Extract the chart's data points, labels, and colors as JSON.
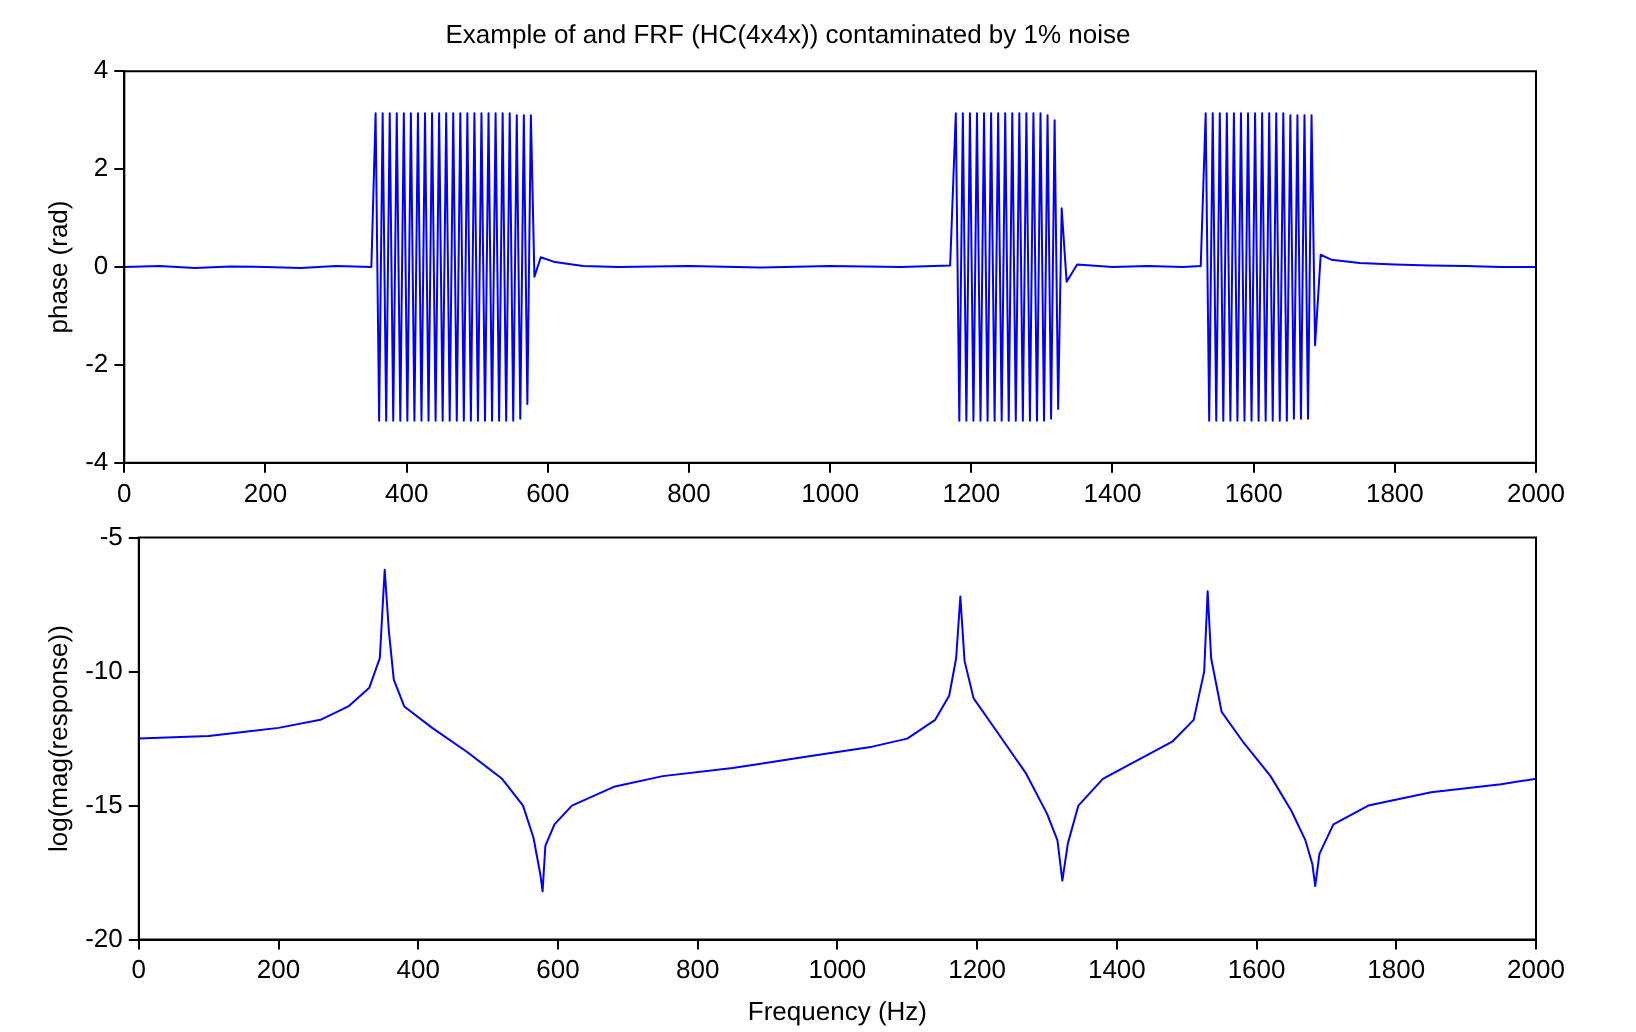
{
  "chart_data": [
    {
      "type": "line",
      "title": "Example of and FRF (HC(4x4x)) contaminated by 1% noise",
      "ylabel": "phase (rad)",
      "xlim": [
        0,
        2000
      ],
      "xticks": [
        0,
        200,
        400,
        600,
        800,
        1000,
        1200,
        1400,
        1600,
        1800,
        2000
      ],
      "ylim": [
        -4,
        4
      ],
      "yticks": [
        -4,
        -2,
        0,
        2,
        4
      ],
      "grid": false,
      "legend": false,
      "marker": "none",
      "line_style": "solid",
      "series": [
        {
          "color": "#0000ff",
          "x": [
            0,
            50,
            100,
            150,
            200,
            250,
            300,
            350,
            356,
            361,
            366,
            371,
            376,
            381,
            386,
            391,
            396,
            401,
            406,
            411,
            416,
            421,
            426,
            431,
            436,
            441,
            446,
            451,
            456,
            461,
            466,
            471,
            476,
            481,
            486,
            491,
            496,
            501,
            506,
            511,
            516,
            521,
            526,
            531,
            536,
            541,
            546,
            551,
            556,
            561,
            566,
            571,
            576,
            581,
            590,
            610,
            650,
            700,
            800,
            900,
            1000,
            1100,
            1170,
            1178,
            1183,
            1188,
            1193,
            1198,
            1203,
            1208,
            1213,
            1218,
            1223,
            1228,
            1233,
            1238,
            1243,
            1248,
            1253,
            1258,
            1263,
            1268,
            1273,
            1278,
            1283,
            1288,
            1293,
            1298,
            1303,
            1308,
            1313,
            1318,
            1323,
            1328,
            1335,
            1350,
            1400,
            1450,
            1500,
            1525,
            1532,
            1537,
            1542,
            1547,
            1552,
            1557,
            1562,
            1567,
            1572,
            1577,
            1582,
            1587,
            1592,
            1597,
            1602,
            1607,
            1612,
            1617,
            1622,
            1627,
            1632,
            1637,
            1642,
            1647,
            1652,
            1657,
            1662,
            1667,
            1672,
            1677,
            1682,
            1687,
            1695,
            1710,
            1750,
            1800,
            1850,
            1900,
            1950,
            2000
          ],
          "values": [
            0,
            0.02,
            -0.02,
            0.01,
            0,
            -0.02,
            0.02,
            0,
            3.14,
            -3.14,
            3.14,
            -3.14,
            3.14,
            -3.14,
            3.14,
            -3.14,
            3.14,
            -3.14,
            3.14,
            -3.14,
            3.14,
            -3.14,
            3.14,
            -3.14,
            3.14,
            -3.14,
            3.14,
            -3.14,
            3.14,
            -3.14,
            3.14,
            -3.14,
            3.14,
            -3.14,
            3.14,
            -3.14,
            3.14,
            -3.14,
            3.14,
            -3.14,
            3.14,
            -3.14,
            3.14,
            -3.14,
            3.14,
            -3.14,
            3.14,
            -3.14,
            3.1,
            -3.1,
            3.1,
            -2.8,
            3.1,
            -0.2,
            0.2,
            0.1,
            0.02,
            0,
            0.02,
            -0.01,
            0.02,
            0,
            0.03,
            3.14,
            -3.14,
            3.14,
            -3.14,
            3.14,
            -3.14,
            3.14,
            -3.14,
            3.14,
            -3.14,
            3.14,
            -3.14,
            3.14,
            -3.14,
            3.14,
            -3.14,
            3.14,
            -3.14,
            3.14,
            -3.14,
            3.14,
            -3.14,
            3.14,
            -3.14,
            3.14,
            -3.14,
            3.1,
            -3.1,
            3.0,
            -2.9,
            1.2,
            -0.3,
            0.05,
            0,
            0.02,
            0,
            0.02,
            3.14,
            -3.14,
            3.14,
            -3.14,
            3.14,
            -3.14,
            3.14,
            -3.14,
            3.14,
            -3.14,
            3.14,
            -3.14,
            3.14,
            -3.14,
            3.14,
            -3.14,
            3.14,
            -3.14,
            3.14,
            -3.14,
            3.14,
            -3.14,
            3.14,
            -3.14,
            3.1,
            -3.1,
            3.1,
            -3.1,
            3.1,
            -3.1,
            3.1,
            -1.6,
            0.25,
            0.15,
            0.08,
            0.05,
            0.03,
            0.02,
            0,
            0
          ]
        }
      ]
    },
    {
      "type": "line",
      "xlabel": "Frequency (Hz)",
      "ylabel": "log(mag(response))",
      "xlim": [
        0,
        2000
      ],
      "xticks": [
        0,
        200,
        400,
        600,
        800,
        1000,
        1200,
        1400,
        1600,
        1800,
        2000
      ],
      "ylim": [
        -20,
        -5
      ],
      "yticks": [
        -20,
        -15,
        -10,
        -5
      ],
      "grid": false,
      "legend": false,
      "marker": "none",
      "line_style": "solid",
      "series": [
        {
          "color": "#0000ff",
          "x": [
            0,
            100,
            200,
            260,
            300,
            330,
            345,
            352,
            358,
            365,
            380,
            420,
            470,
            520,
            550,
            565,
            575,
            578,
            582,
            595,
            620,
            680,
            750,
            850,
            950,
            1050,
            1100,
            1140,
            1160,
            1170,
            1176,
            1182,
            1195,
            1230,
            1270,
            1300,
            1315,
            1322,
            1330,
            1345,
            1380,
            1430,
            1480,
            1510,
            1525,
            1530,
            1535,
            1550,
            1580,
            1620,
            1650,
            1670,
            1680,
            1684,
            1690,
            1710,
            1760,
            1850,
            1950,
            2000
          ],
          "values": [
            -12.5,
            -12.4,
            -12.1,
            -11.8,
            -11.3,
            -10.6,
            -9.5,
            -6.2,
            -8.5,
            -10.3,
            -11.3,
            -12.1,
            -13.0,
            -14.0,
            -15.0,
            -16.2,
            -17.6,
            -18.2,
            -16.5,
            -15.7,
            -15.0,
            -14.3,
            -13.9,
            -13.6,
            -13.2,
            -12.8,
            -12.5,
            -11.8,
            -10.9,
            -9.5,
            -7.2,
            -9.6,
            -11.0,
            -12.3,
            -13.8,
            -15.3,
            -16.3,
            -17.8,
            -16.4,
            -15.0,
            -14.0,
            -13.3,
            -12.6,
            -11.8,
            -10.0,
            -7.0,
            -9.5,
            -11.5,
            -12.6,
            -13.9,
            -15.2,
            -16.3,
            -17.2,
            -18.0,
            -16.8,
            -15.7,
            -15.0,
            -14.5,
            -14.2,
            -14.0
          ]
        }
      ]
    }
  ]
}
